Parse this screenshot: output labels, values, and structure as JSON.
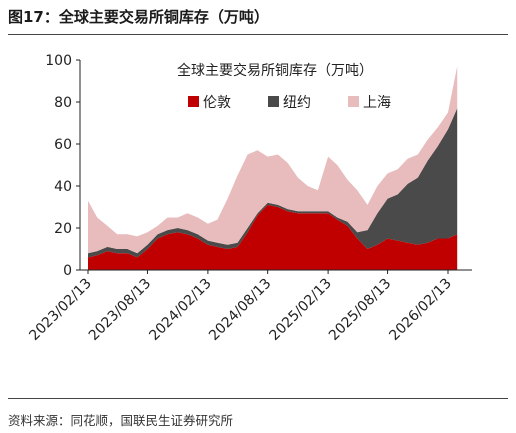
{
  "figure": {
    "title": "图17：全球主要交易所铜库存（万吨）",
    "source": "资料来源：同花顺，国联民生证券研究所"
  },
  "chart_data": {
    "type": "area",
    "stacked": true,
    "title": "全球主要交易所铜库存（万吨）",
    "xlabel": "",
    "ylabel": "",
    "ylim": [
      0,
      100
    ],
    "yticks": [
      0,
      20,
      40,
      60,
      80,
      100
    ],
    "grid": false,
    "legend_position": "top-center",
    "xtick_labels": [
      "2023/02/13",
      "2023/08/13",
      "2024/02/13",
      "2024/08/13",
      "2025/02/13",
      "2025/08/13",
      "2026/02/13"
    ],
    "x": [
      "2023/02/13",
      "2023/03/13",
      "2023/04/13",
      "2023/05/13",
      "2023/06/13",
      "2023/07/13",
      "2023/08/13",
      "2023/09/13",
      "2023/10/13",
      "2023/11/13",
      "2023/12/13",
      "2024/01/13",
      "2024/02/13",
      "2024/03/13",
      "2024/04/13",
      "2024/05/13",
      "2024/06/13",
      "2024/07/13",
      "2024/08/13",
      "2024/09/13",
      "2024/10/13",
      "2024/11/13",
      "2024/12/13",
      "2025/01/13",
      "2025/02/13",
      "2025/03/13",
      "2025/04/13",
      "2025/05/13",
      "2025/06/13",
      "2025/07/13",
      "2025/08/13",
      "2025/09/13",
      "2025/10/13",
      "2025/11/13",
      "2025/12/13",
      "2026/01/13",
      "2026/02/13",
      "2026/03/13"
    ],
    "series": [
      {
        "name": "伦敦",
        "color": "#c00000",
        "values": [
          6,
          7,
          9,
          8,
          8,
          6,
          10,
          15,
          17,
          18,
          17,
          15,
          12,
          11,
          10,
          11,
          18,
          26,
          31,
          30,
          28,
          27,
          27,
          27,
          27,
          24,
          21,
          15,
          10,
          12,
          15,
          14,
          13,
          12,
          13,
          15,
          15,
          17
        ]
      },
      {
        "name": "纽约",
        "color": "#4a4a4a",
        "values": [
          2,
          2,
          2,
          2,
          2,
          2,
          2,
          2,
          2,
          2,
          2,
          2,
          2,
          2,
          2,
          2,
          2,
          1,
          1,
          1,
          1,
          1,
          1,
          1,
          1,
          1,
          2,
          3,
          9,
          15,
          19,
          22,
          28,
          32,
          39,
          44,
          52,
          60
        ]
      },
      {
        "name": "上海",
        "color": "#e8bcbc",
        "values": [
          25,
          16,
          10,
          7,
          7,
          8,
          6,
          4,
          6,
          5,
          8,
          8,
          8,
          11,
          22,
          32,
          35,
          30,
          22,
          24,
          22,
          16,
          12,
          10,
          26,
          25,
          20,
          20,
          12,
          13,
          12,
          12,
          12,
          11,
          10,
          9,
          8,
          20
        ]
      }
    ]
  }
}
